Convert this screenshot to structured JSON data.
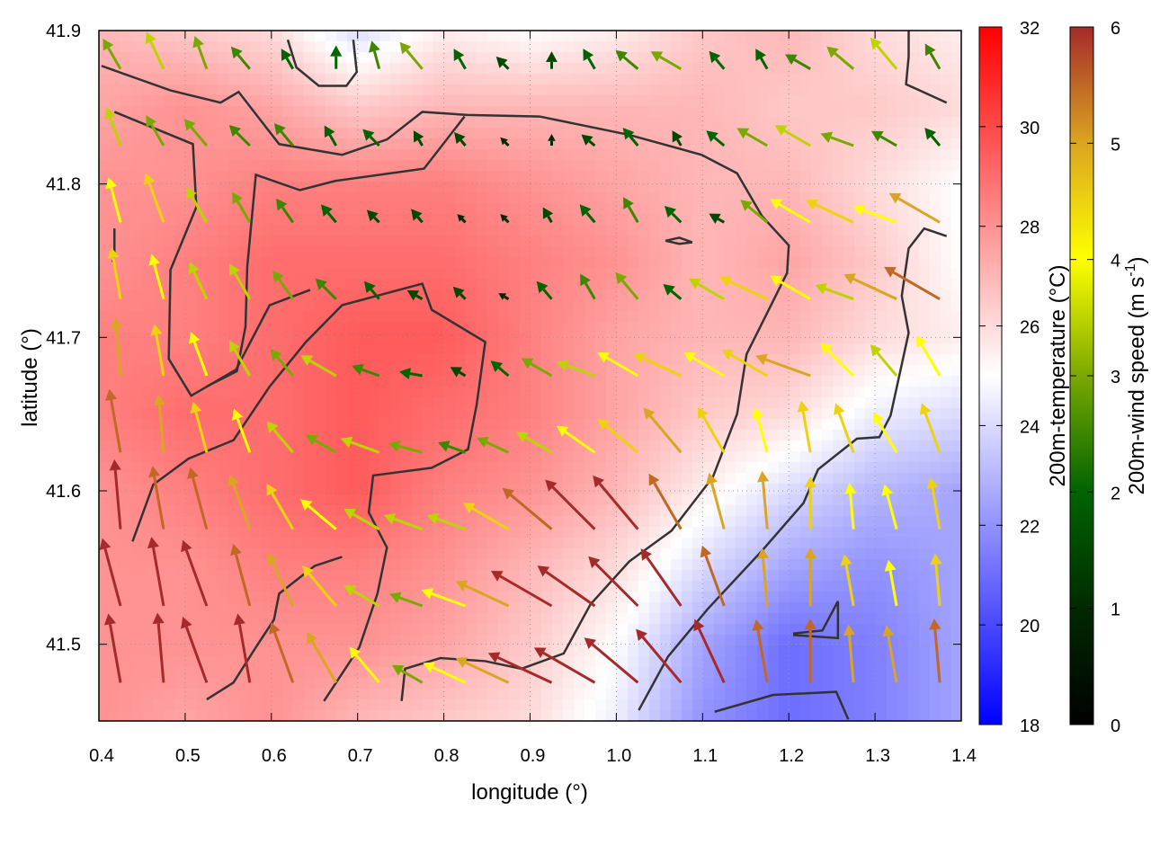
{
  "chart_data": {
    "type": "heatmap",
    "overlay": "vector",
    "title": "",
    "xlabel": "longitude (°)",
    "ylabel": "latitude (°)",
    "xlim": [
      0.4,
      1.4
    ],
    "ylim": [
      41.45,
      41.9
    ],
    "xticks": [
      "0.4",
      "0.5",
      "0.6",
      "0.7",
      "0.8",
      "0.9",
      "1.0",
      "1.1",
      "1.2",
      "1.3",
      "1.4"
    ],
    "yticks": [
      "41.5",
      "41.6",
      "41.7",
      "41.8",
      "41.9"
    ],
    "grid": true,
    "temperature": {
      "label": "200m-temperature (°C)",
      "range": [
        18,
        32
      ],
      "ticks": [
        "18",
        "20",
        "22",
        "24",
        "26",
        "28",
        "30",
        "32"
      ],
      "colors": [
        "#0000ff",
        "#ffffff",
        "#ff0000"
      ],
      "lon": [
        0.4,
        0.5,
        0.6,
        0.7,
        0.8,
        0.9,
        1.0,
        1.1,
        1.2,
        1.3,
        1.4
      ],
      "lat": [
        41.9,
        41.85,
        41.8,
        41.75,
        41.7,
        41.65,
        41.6,
        41.55,
        41.5,
        41.45
      ],
      "values": [
        [
          27,
          26.5,
          26,
          24,
          25.5,
          25,
          25.5,
          26.5,
          27,
          26,
          25.5
        ],
        [
          27.5,
          28,
          27.5,
          26.5,
          27,
          27,
          27,
          27,
          26.5,
          26.5,
          26
        ],
        [
          28,
          28,
          28.5,
          28.5,
          28.5,
          28,
          27.5,
          27,
          27,
          26,
          25
        ],
        [
          28,
          28.5,
          29,
          29,
          29,
          28.5,
          28,
          27,
          27.5,
          26.5,
          25
        ],
        [
          28.5,
          28.5,
          29,
          29.5,
          29.5,
          28.5,
          27.5,
          27,
          27,
          26,
          25.5
        ],
        [
          28.5,
          29,
          29,
          29.5,
          29,
          28.5,
          27.5,
          26.5,
          26,
          24.5,
          24
        ],
        [
          28,
          28.5,
          29,
          29.5,
          28.5,
          28,
          27,
          25.5,
          24,
          23,
          22.5
        ],
        [
          28,
          28,
          28.5,
          28.5,
          28,
          27,
          26,
          24,
          22.5,
          22,
          22.5
        ],
        [
          28,
          28,
          28,
          28,
          27.5,
          26.5,
          25,
          22.5,
          21,
          21.5,
          22.5
        ],
        [
          28,
          27.5,
          28,
          27,
          26.5,
          26,
          24.5,
          22,
          21,
          21.5,
          22.5
        ]
      ]
    },
    "wind": {
      "label_main": "200m-wind speed (m s",
      "label_sup": "-1",
      "label_end": ")",
      "range": [
        0,
        6
      ],
      "ticks": [
        "0",
        "1",
        "2",
        "3",
        "4",
        "5",
        "6"
      ],
      "colors": [
        "#000000",
        "#002a00",
        "#006400",
        "#7aa800",
        "#ffff00",
        "#daa520",
        "#a52a2a"
      ],
      "lon": [
        0.425,
        0.475,
        0.525,
        0.575,
        0.625,
        0.675,
        0.725,
        0.775,
        0.825,
        0.875,
        0.925,
        0.975,
        1.025,
        1.075,
        1.125,
        1.175,
        1.225,
        1.275,
        1.325,
        1.375
      ],
      "lat": [
        41.875,
        41.825,
        41.775,
        41.725,
        41.675,
        41.625,
        41.575,
        41.525,
        41.475
      ],
      "speed": [
        [
          3,
          3.5,
          3,
          2.5,
          2,
          2,
          2.5,
          3,
          2,
          1.5,
          1.5,
          2,
          2.5,
          3,
          2,
          2,
          2.5,
          3,
          3.5,
          2.5
        ],
        [
          3.5,
          3,
          3,
          2.5,
          2.5,
          2,
          2,
          1.5,
          1.5,
          1,
          1,
          1.5,
          2,
          1.5,
          2,
          3,
          3.5,
          3,
          2.5,
          2
        ],
        [
          4,
          4.5,
          3.5,
          3,
          2.5,
          2,
          1.5,
          1.5,
          1,
          1,
          1.5,
          2,
          2.5,
          2,
          1.5,
          3,
          4,
          4.5,
          4,
          5
        ],
        [
          4.5,
          4,
          3.5,
          3.5,
          3,
          2.5,
          2,
          1.5,
          1.5,
          1,
          2,
          2.5,
          3,
          2,
          3.5,
          4.5,
          4,
          3.5,
          5,
          5.5
        ],
        [
          5,
          4.5,
          4,
          3.5,
          3,
          3.5,
          2.5,
          2,
          1.5,
          2,
          3,
          3.5,
          4,
          4.5,
          4,
          4.5,
          5,
          4,
          3.5,
          4
        ],
        [
          5.5,
          5,
          4.5,
          4,
          3.5,
          3,
          3.5,
          3,
          2.5,
          3,
          3.5,
          4,
          4.5,
          5,
          4.5,
          4,
          4.5,
          4.5,
          4,
          4.5
        ],
        [
          6,
          5.5,
          5.5,
          5,
          4.5,
          4,
          3.5,
          3.5,
          3.5,
          4.5,
          5.5,
          6,
          6,
          5.5,
          5,
          5,
          4.5,
          4,
          4,
          4.5
        ],
        [
          6,
          6,
          6,
          5.5,
          5,
          4.5,
          3.5,
          3,
          4,
          5,
          6,
          6,
          6,
          6,
          5.5,
          5,
          5,
          4.5,
          4,
          4.5
        ],
        [
          6,
          6,
          6,
          6,
          5.5,
          5,
          4,
          3,
          4,
          5,
          6,
          6,
          6,
          6,
          6,
          5.5,
          5.5,
          5,
          5,
          5.5
        ]
      ],
      "direction_deg": [
        [
          330,
          335,
          340,
          320,
          330,
          0,
          345,
          320,
          330,
          315,
          0,
          330,
          310,
          300,
          320,
          330,
          300,
          310,
          320,
          330
        ],
        [
          340,
          330,
          320,
          315,
          320,
          330,
          315,
          330,
          320,
          315,
          0,
          310,
          320,
          330,
          310,
          300,
          300,
          290,
          300,
          320
        ],
        [
          345,
          340,
          330,
          330,
          325,
          320,
          315,
          320,
          315,
          315,
          330,
          320,
          330,
          315,
          300,
          310,
          300,
          295,
          290,
          300
        ],
        [
          350,
          345,
          335,
          330,
          325,
          315,
          320,
          300,
          315,
          300,
          320,
          330,
          320,
          310,
          300,
          295,
          300,
          290,
          295,
          300
        ],
        [
          355,
          350,
          340,
          330,
          320,
          300,
          290,
          280,
          300,
          310,
          300,
          290,
          300,
          295,
          300,
          300,
          290,
          315,
          320,
          330
        ],
        [
          350,
          355,
          345,
          340,
          320,
          300,
          290,
          285,
          290,
          295,
          300,
          305,
          310,
          320,
          330,
          345,
          350,
          340,
          330,
          340
        ],
        [
          355,
          350,
          345,
          340,
          330,
          310,
          300,
          290,
          290,
          300,
          310,
          315,
          320,
          330,
          345,
          355,
          0,
          355,
          345,
          350
        ],
        [
          345,
          350,
          340,
          345,
          335,
          320,
          300,
          290,
          290,
          295,
          300,
          305,
          315,
          325,
          340,
          355,
          0,
          350,
          350,
          355
        ],
        [
          350,
          355,
          340,
          350,
          340,
          330,
          320,
          300,
          295,
          295,
          295,
          300,
          310,
          320,
          335,
          350,
          0,
          355,
          350,
          355
        ]
      ]
    },
    "contours": [
      [
        [
          0.403,
          41.877
        ],
        [
          0.483,
          41.861
        ],
        [
          0.541,
          41.853
        ],
        [
          0.562,
          41.86
        ],
        [
          0.609,
          41.826
        ],
        [
          0.682,
          41.819
        ],
        [
          0.734,
          41.829
        ],
        [
          0.775,
          41.847
        ],
        [
          0.827,
          41.845
        ],
        [
          0.911,
          41.844
        ],
        [
          1.015,
          41.832
        ],
        [
          1.099,
          41.819
        ],
        [
          1.14,
          41.807
        ],
        [
          1.169,
          41.779
        ],
        [
          1.2,
          41.76
        ],
        [
          1.198,
          41.742
        ],
        [
          1.151,
          41.689
        ],
        [
          1.14,
          41.65
        ],
        [
          1.112,
          41.609
        ],
        [
          1.064,
          41.574
        ],
        [
          1.015,
          41.554
        ],
        [
          0.97,
          41.526
        ],
        [
          0.939,
          41.494
        ],
        [
          0.89,
          41.484
        ],
        [
          0.848,
          41.489
        ],
        [
          0.796,
          41.491
        ],
        [
          0.755,
          41.484
        ],
        [
          0.751,
          41.463
        ]
      ],
      [
        [
          0.418,
          41.847
        ],
        [
          0.509,
          41.826
        ],
        [
          0.513,
          41.785
        ],
        [
          0.483,
          41.744
        ],
        [
          0.481,
          41.686
        ],
        [
          0.507,
          41.662
        ],
        [
          0.559,
          41.679
        ],
        [
          0.598,
          41.721
        ],
        [
          0.645,
          41.731
        ]
      ],
      [
        [
          0.525,
          41.668
        ],
        [
          0.56,
          41.678
        ],
        [
          0.57,
          41.707
        ],
        [
          0.572,
          41.746
        ],
        [
          0.582,
          41.806
        ],
        [
          0.633,
          41.796
        ],
        [
          0.674,
          41.802
        ],
        [
          0.777,
          41.81
        ],
        [
          0.824,
          41.844
        ]
      ],
      [
        [
          0.439,
          41.567
        ],
        [
          0.463,
          41.604
        ],
        [
          0.504,
          41.621
        ],
        [
          0.556,
          41.633
        ],
        [
          0.598,
          41.668
        ],
        [
          0.64,
          41.697
        ],
        [
          0.682,
          41.721
        ],
        [
          0.755,
          41.732
        ],
        [
          0.775,
          41.735
        ],
        [
          0.786,
          41.718
        ],
        [
          0.848,
          41.697
        ],
        [
          0.838,
          41.656
        ],
        [
          0.828,
          41.627
        ],
        [
          0.786,
          41.615
        ],
        [
          0.718,
          41.61
        ],
        [
          0.713,
          41.586
        ],
        [
          0.734,
          41.563
        ],
        [
          0.723,
          41.533
        ],
        [
          0.702,
          41.498
        ],
        [
          0.661,
          41.463
        ]
      ],
      [
        [
          0.525,
          41.464
        ],
        [
          0.556,
          41.475
        ],
        [
          0.582,
          41.498
        ],
        [
          0.603,
          41.516
        ],
        [
          0.609,
          41.533
        ],
        [
          0.65,
          41.551
        ],
        [
          0.682,
          41.557
        ]
      ],
      [
        [
          1.026,
          41.457
        ],
        [
          1.06,
          41.492
        ],
        [
          1.106,
          41.523
        ],
        [
          1.169,
          41.561
        ],
        [
          1.217,
          41.592
        ],
        [
          1.234,
          41.614
        ],
        [
          1.279,
          41.634
        ],
        [
          1.305,
          41.635
        ],
        [
          1.318,
          41.649
        ],
        [
          1.339,
          41.703
        ],
        [
          1.331,
          41.727
        ],
        [
          1.339,
          41.758
        ],
        [
          1.357,
          41.771
        ],
        [
          1.383,
          41.766
        ]
      ],
      [
        [
          1.339,
          41.9
        ],
        [
          1.339,
          41.883
        ],
        [
          1.336,
          41.865
        ],
        [
          1.383,
          41.853
        ]
      ],
      [
        [
          0.619,
          41.894
        ],
        [
          0.629,
          41.876
        ],
        [
          0.655,
          41.864
        ],
        [
          0.687,
          41.864
        ],
        [
          0.699,
          41.873
        ],
        [
          0.695,
          41.894
        ]
      ],
      [
        [
          1.114,
          41.456
        ],
        [
          1.182,
          41.467
        ],
        [
          1.255,
          41.469
        ],
        [
          1.269,
          41.451
        ]
      ],
      [
        [
          1.205,
          41.507
        ],
        [
          1.239,
          41.509
        ],
        [
          1.257,
          41.528
        ],
        [
          1.257,
          41.504
        ],
        [
          1.205,
          41.506
        ]
      ],
      [
        [
          1.057,
          41.763
        ],
        [
          1.073,
          41.765
        ],
        [
          1.088,
          41.762
        ],
        [
          1.073,
          41.761
        ],
        [
          1.057,
          41.763
        ]
      ],
      [
        [
          0.418,
          41.771
        ],
        [
          0.418,
          41.754
        ],
        [
          0.416,
          41.749
        ]
      ]
    ],
    "contour_color": "#333333"
  }
}
